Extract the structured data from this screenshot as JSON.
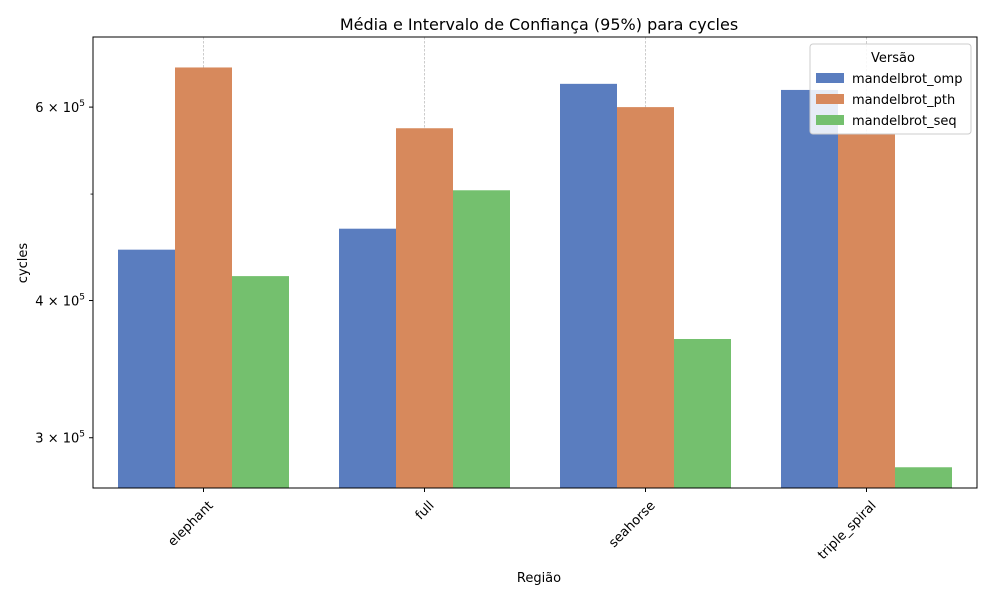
{
  "chart_data": {
    "type": "bar",
    "title": "Média e Intervalo de Confiança (95%) para cycles",
    "xlabel": "Região",
    "ylabel": "cycles",
    "categories": [
      "elephant",
      "full",
      "seahorse",
      "triple_spiral"
    ],
    "series": [
      {
        "name": "mandelbrot_omp",
        "color": "#5a7dbf",
        "values": [
          445000,
          465000,
          630000,
          622000
        ]
      },
      {
        "name": "mandelbrot_pth",
        "color": "#d7895c",
        "values": [
          652000,
          574000,
          600000,
          567000
        ]
      },
      {
        "name": "mandelbrot_seq",
        "color": "#74c06e",
        "values": [
          421000,
          504000,
          369000,
          282000
        ]
      }
    ],
    "yscale": "log",
    "ylim": [
      270000,
      695000
    ],
    "yticks": [
      {
        "value": 300000,
        "mantissa": "3",
        "exponent": "5"
      },
      {
        "value": 400000,
        "mantissa": "4",
        "exponent": "5"
      },
      {
        "value": 600000,
        "mantissa": "6",
        "exponent": "5"
      }
    ],
    "yminor_ticks": [
      500000
    ],
    "grid": "x-dashed",
    "legend": {
      "title": "Versão",
      "position": "top-right"
    }
  }
}
